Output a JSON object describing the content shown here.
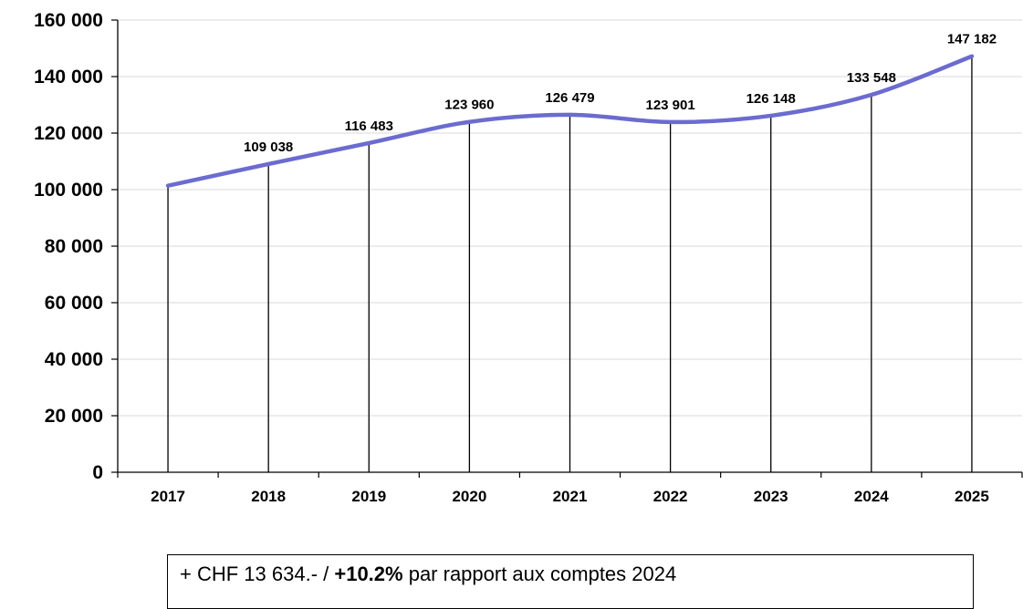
{
  "chart_data": {
    "type": "line",
    "categories": [
      "2017",
      "2018",
      "2019",
      "2020",
      "2021",
      "2022",
      "2023",
      "2024",
      "2025"
    ],
    "series": [
      {
        "values": [
          101404,
          109038,
          116483,
          123960,
          126479,
          123901,
          126148,
          133548,
          147182
        ],
        "data_labels": [
          "",
          "109 038",
          "116 483",
          "123 960",
          "126 479",
          "123 901",
          "126 148",
          "133 548",
          "147 182"
        ],
        "color": "#6b6bd0"
      }
    ],
    "ylim": [
      0,
      160000
    ],
    "yticks": [
      0,
      20000,
      40000,
      60000,
      80000,
      100000,
      120000,
      140000,
      160000
    ],
    "ytick_labels": [
      "0",
      "20 000",
      "40 000",
      "60 000",
      "80 000",
      "100 000",
      "120 000",
      "140 000",
      "160 000"
    ],
    "drop_lines": true,
    "grid": true,
    "smooth": true
  },
  "note": {
    "prefix": "+ CHF 13 634.- / ",
    "highlight": "+10.2%",
    "suffix": " par rapport aux comptes 2024"
  }
}
